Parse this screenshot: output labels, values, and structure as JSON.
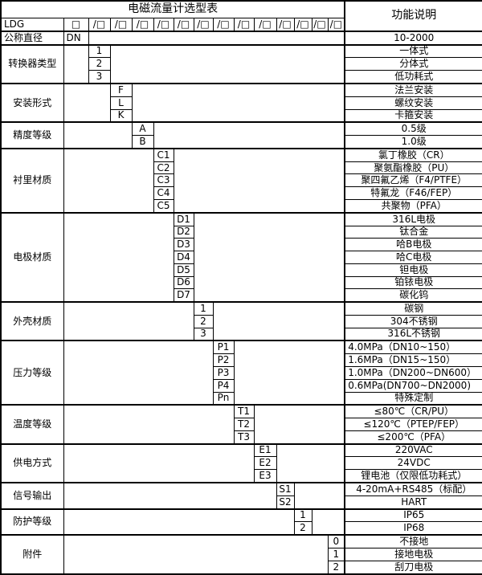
{
  "table": {
    "title": "电磁流量计选型表",
    "function_header": "功能说明",
    "model_code": "LDG",
    "box_symbol": "□",
    "slot_symbol": "/□",
    "slot_count": 13,
    "dn_row": {
      "category": "公称直径",
      "code": "DN",
      "desc": "10-2000"
    },
    "groups": [
      {
        "category": "转换器类型",
        "code_col": 1,
        "items": [
          {
            "code": "1",
            "desc": "一体式"
          },
          {
            "code": "2",
            "desc": "分体式"
          },
          {
            "code": "3",
            "desc": "低功耗式"
          }
        ]
      },
      {
        "category": "安装形式",
        "code_col": 2,
        "items": [
          {
            "code": "F",
            "desc": "法兰安装"
          },
          {
            "code": "L",
            "desc": "螺纹安装"
          },
          {
            "code": "K",
            "desc": "卡箍安装"
          }
        ]
      },
      {
        "category": "精度等级",
        "code_col": 3,
        "items": [
          {
            "code": "A",
            "desc": "0.5级"
          },
          {
            "code": "B",
            "desc": "1.0级"
          }
        ]
      },
      {
        "category": "衬里材质",
        "code_col": 4,
        "items": [
          {
            "code": "C1",
            "desc": "氯丁橡胶（CR）"
          },
          {
            "code": "C2",
            "desc": "聚氨酯橡胶（PU）"
          },
          {
            "code": "C3",
            "desc": "聚四氟乙烯（F4/PTFE）"
          },
          {
            "code": "C4",
            "desc": "特氟龙（F46/FEP）"
          },
          {
            "code": "C5",
            "desc": "共聚物（PFA）"
          }
        ]
      },
      {
        "category": "电极材质",
        "code_col": 5,
        "items": [
          {
            "code": "D1",
            "desc": "316L电极"
          },
          {
            "code": "D2",
            "desc": "钛合金"
          },
          {
            "code": "D3",
            "desc": "哈B电极"
          },
          {
            "code": "D4",
            "desc": "哈C电极"
          },
          {
            "code": "D5",
            "desc": "钽电极"
          },
          {
            "code": "D6",
            "desc": "铂铱电极"
          },
          {
            "code": "D7",
            "desc": "碳化钨"
          }
        ]
      },
      {
        "category": "外壳材质",
        "code_col": 6,
        "items": [
          {
            "code": "1",
            "desc": "碳钢"
          },
          {
            "code": "2",
            "desc": "304不锈钢"
          },
          {
            "code": "3",
            "desc": "316L不锈钢"
          }
        ]
      },
      {
        "category": "压力等级",
        "code_col": 7,
        "items": [
          {
            "code": "P1",
            "desc": "4.0MPa（DN10~150）",
            "align": "left"
          },
          {
            "code": "P2",
            "desc": "1.6MPa（DN15~150）",
            "align": "left"
          },
          {
            "code": "P3",
            "desc": "1.0MPa（DN200~DN600）",
            "align": "left"
          },
          {
            "code": "P4",
            "desc": "0.6MPa(DN700~DN2000)",
            "align": "left"
          },
          {
            "code": "Pn",
            "desc": "特殊定制"
          }
        ]
      },
      {
        "category": "温度等级",
        "code_col": 8,
        "items": [
          {
            "code": "T1",
            "desc": "≤80℃（CR/PU）"
          },
          {
            "code": "T2",
            "desc": "≤120℃（PTEP/FEP）"
          },
          {
            "code": "T3",
            "desc": "≤200℃（PFA）"
          }
        ]
      },
      {
        "category": "供电方式",
        "code_col": 9,
        "items": [
          {
            "code": "E1",
            "desc": "220VAC"
          },
          {
            "code": "E2",
            "desc": "24VDC"
          },
          {
            "code": "E3",
            "desc": "锂电池（仅限低功耗式）"
          }
        ]
      },
      {
        "category": "信号输出",
        "code_col": 10,
        "items": [
          {
            "code": "S1",
            "desc": "4-20mA+RS485（标配）"
          },
          {
            "code": "S2",
            "desc": "HART"
          }
        ]
      },
      {
        "category": "防护等级",
        "code_col": 11,
        "items": [
          {
            "code": "1",
            "desc": "IP65"
          },
          {
            "code": "2",
            "desc": "IP68"
          }
        ]
      },
      {
        "category": "附件",
        "code_col": 13,
        "items": [
          {
            "code": "0",
            "desc": "不接地"
          },
          {
            "code": "1",
            "desc": "接地电极"
          },
          {
            "code": "2",
            "desc": "刮刀电极"
          }
        ]
      }
    ]
  }
}
